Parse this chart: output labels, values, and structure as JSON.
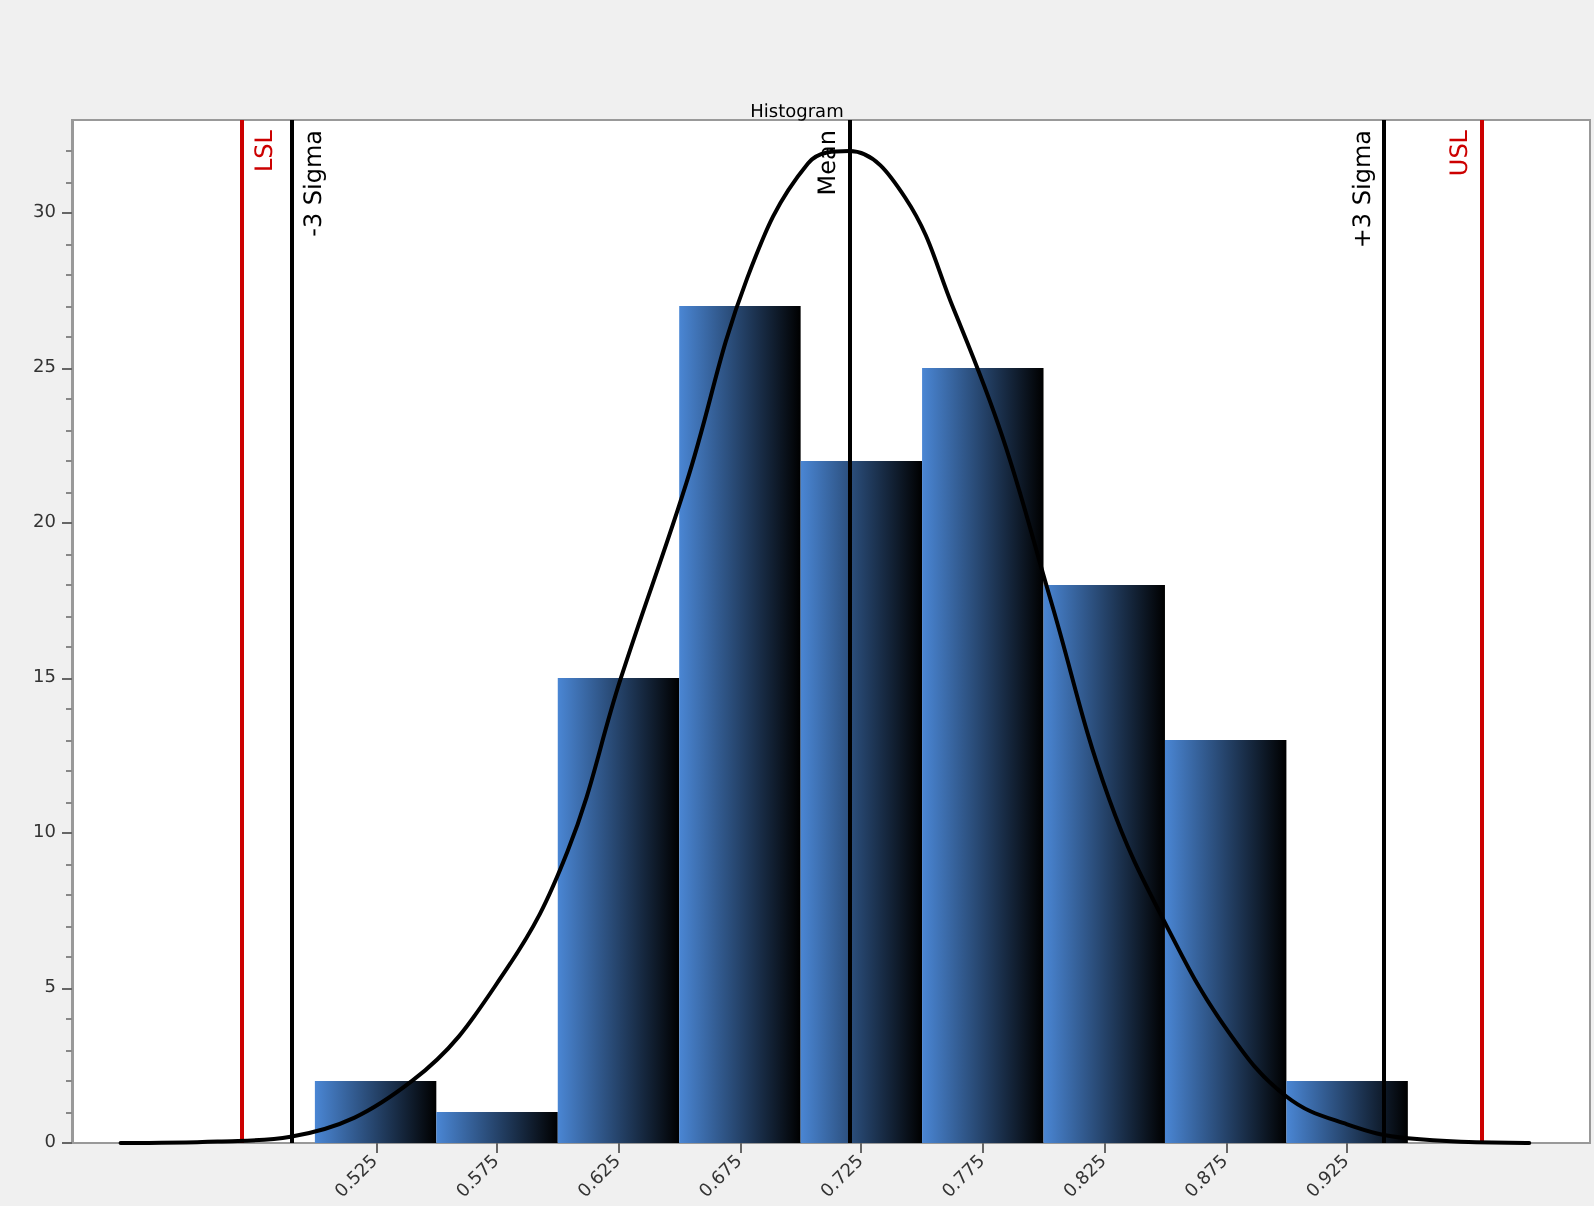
{
  "chart_data": {
    "type": "histogram",
    "title": "Histogram",
    "bins": [
      0.5,
      0.55,
      0.6,
      0.65,
      0.7,
      0.75,
      0.8,
      0.85,
      0.9,
      0.95
    ],
    "values": [
      2,
      1,
      15,
      27,
      22,
      25,
      18,
      13,
      2
    ],
    "color": "#4a86d4",
    "series": [
      {
        "type": "line",
        "color": "#000000",
        "x": [
          0.42,
          0.46,
          0.49,
          0.54,
          0.578,
          0.604,
          0.626,
          0.653,
          0.678,
          0.703,
          0.72,
          0.743,
          0.763,
          0.783,
          0.803,
          0.827,
          0.852,
          0.876,
          0.9,
          0.925,
          0.95,
          1.0
        ],
        "values": [
          0,
          0.05,
          0.2,
          2,
          5.5,
          9.4,
          15,
          21.3,
          27.9,
          31.6,
          32,
          30.5,
          26.9,
          22.8,
          17.5,
          11.1,
          6.8,
          3.6,
          1.5,
          0.6,
          0.15,
          0
        ]
      }
    ],
    "xlim": [
      0.4,
      1.025
    ],
    "xticks": [
      0.525,
      0.575,
      0.625,
      0.675,
      0.725,
      0.775,
      0.825,
      0.875,
      0.925
    ],
    "ylim": [
      0,
      33
    ],
    "yticks": [
      0,
      5,
      10,
      15,
      20,
      25,
      30
    ],
    "ref_lines": [
      {
        "axis": "x",
        "value": 0.47,
        "label": "LSL",
        "color": "#cc0000"
      },
      {
        "axis": "x",
        "value": 0.49,
        "label": "-3 Sigma",
        "color": "#000000"
      },
      {
        "axis": "x",
        "value": 0.72,
        "label": "Mean",
        "color": "#000000"
      },
      {
        "axis": "x",
        "value": 0.94,
        "label": "+3 Sigma",
        "color": "#000000"
      },
      {
        "axis": "x",
        "value": 0.98,
        "label": "USL",
        "color": "#cc0000"
      }
    ],
    "grid": false,
    "marker": "none",
    "line_style": "solid"
  }
}
